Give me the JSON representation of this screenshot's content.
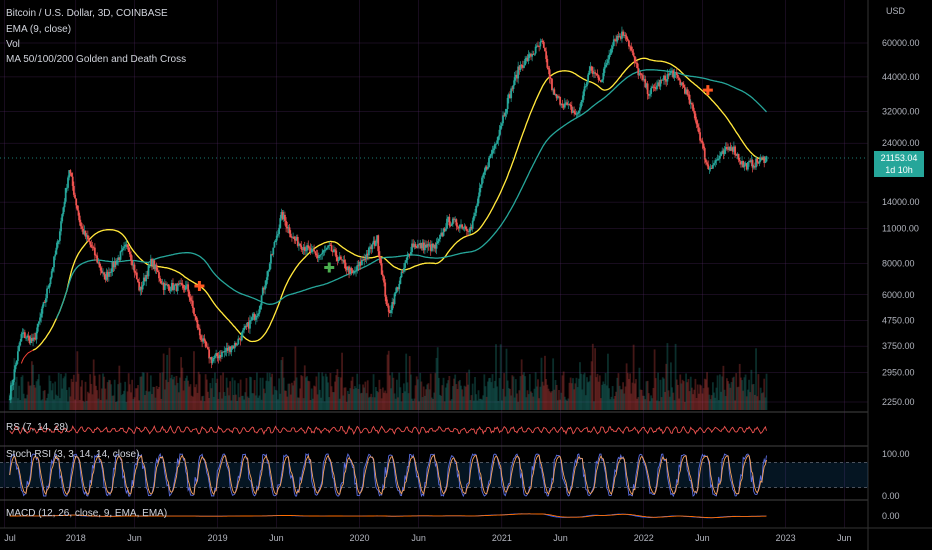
{
  "header": {
    "title": "Bitcoin / U.S. Dollar, 3D, COINBASE",
    "indicators": [
      "EMA (9, close)",
      "Vol",
      "MA 50/100/200 Golden and Death Cross"
    ],
    "currency": "USD"
  },
  "price_tag": {
    "value": "21153.04",
    "countdown": "1d 10h"
  },
  "price_axis": [
    "60000.00",
    "44000.00",
    "32000.00",
    "24000.00",
    "14000.00",
    "11000.00",
    "8000.00",
    "6000.00",
    "4750.00",
    "3750.00",
    "2950.00",
    "2250.00"
  ],
  "panes": {
    "rsi_label": "RS (7, 14, 28)",
    "stoch_label": "Stoch RSI (3, 3, 14, 14, close)",
    "stoch_axis": [
      "100.00",
      "0.00"
    ],
    "macd_label": "MACD (12, 26, close, 9, EMA, EMA)",
    "macd_axis": [
      "0.00"
    ]
  },
  "time_axis": [
    "Jul",
    "2018",
    "Jun",
    "2019",
    "Jun",
    "2020",
    "Jun",
    "2021",
    "Jun",
    "2022",
    "Jun",
    "2023",
    "Jun"
  ],
  "colors": {
    "up": "#26a69a",
    "down": "#ef5350",
    "ema": "#f44336",
    "ma50": "#ffeb3b",
    "ma200": "#26a69a",
    "death_cross": "#ff5722",
    "golden_cross": "#4caf50",
    "stoch_k": "#5b6ee1",
    "stoch_d": "#f5a25d",
    "grid": "#5b2d6e"
  },
  "chart_data": {
    "type": "line",
    "symbol": "Bitcoin / U.S. Dollar",
    "interval": "3D",
    "exchange": "COINBASE",
    "scale": "log",
    "ylim": [
      1900,
      72000
    ],
    "price_points": [
      [
        "2017-07",
        2400
      ],
      [
        "2017-08",
        4200
      ],
      [
        "2017-09",
        3900
      ],
      [
        "2017-10",
        5800
      ],
      [
        "2017-11",
        9500
      ],
      [
        "2017-12",
        19000
      ],
      [
        "2018-01",
        11000
      ],
      [
        "2018-02",
        9000
      ],
      [
        "2018-03",
        7000
      ],
      [
        "2018-05",
        9500
      ],
      [
        "2018-06",
        6200
      ],
      [
        "2018-07",
        8200
      ],
      [
        "2018-08",
        6500
      ],
      [
        "2018-10",
        6400
      ],
      [
        "2018-11",
        4200
      ],
      [
        "2018-12",
        3300
      ],
      [
        "2019-02",
        3800
      ],
      [
        "2019-04",
        5200
      ],
      [
        "2019-06",
        12500
      ],
      [
        "2019-07",
        10000
      ],
      [
        "2019-09",
        8500
      ],
      [
        "2019-10",
        9200
      ],
      [
        "2019-12",
        7200
      ],
      [
        "2020-02",
        10000
      ],
      [
        "2020-03",
        5000
      ],
      [
        "2020-05",
        9500
      ],
      [
        "2020-07",
        9200
      ],
      [
        "2020-08",
        11800
      ],
      [
        "2020-10",
        11000
      ],
      [
        "2020-11",
        18000
      ],
      [
        "2020-12",
        24000
      ],
      [
        "2021-01",
        35000
      ],
      [
        "2021-02",
        48000
      ],
      [
        "2021-04",
        60000
      ],
      [
        "2021-05",
        37000
      ],
      [
        "2021-06",
        34000
      ],
      [
        "2021-07",
        31000
      ],
      [
        "2021-08",
        47000
      ],
      [
        "2021-09",
        43000
      ],
      [
        "2021-10",
        62000
      ],
      [
        "2021-11",
        66000
      ],
      [
        "2021-12",
        47000
      ],
      [
        "2022-01",
        38000
      ],
      [
        "2022-03",
        46000
      ],
      [
        "2022-04",
        40000
      ],
      [
        "2022-05",
        30000
      ],
      [
        "2022-06",
        19000
      ],
      [
        "2022-08",
        23500
      ],
      [
        "2022-09",
        19500
      ],
      [
        "2022-10",
        20000
      ],
      [
        "2022-11",
        21153.04
      ]
    ],
    "crosses": [
      {
        "type": "death",
        "date": "2018-11",
        "price": 6500
      },
      {
        "type": "golden",
        "date": "2019-10",
        "price": 7700
      },
      {
        "type": "death",
        "date": "2022-06",
        "price": 39000
      }
    ],
    "stoch_levels": [
      80,
      20
    ]
  }
}
